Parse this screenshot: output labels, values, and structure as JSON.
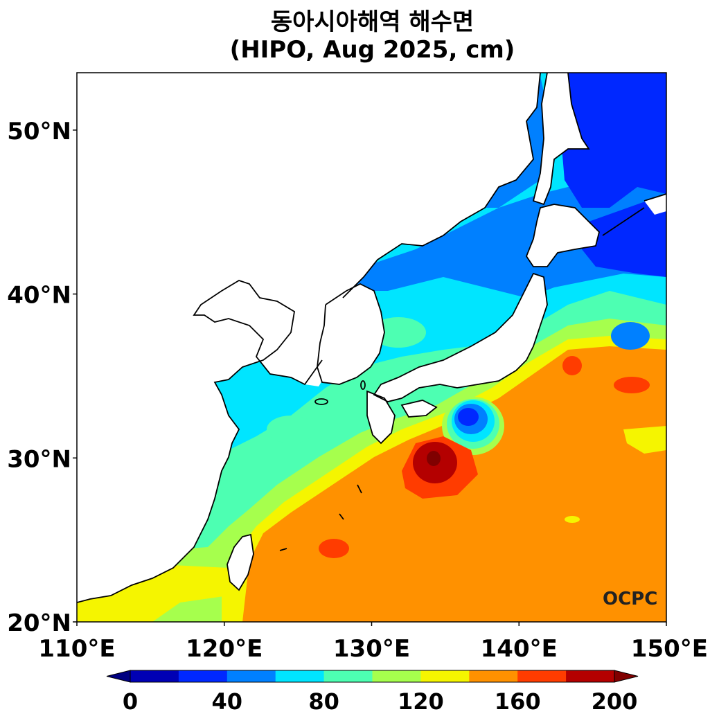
{
  "title": {
    "line1": "동아시아해역 해수면",
    "line2": "(HIPO, Aug 2025, cm)"
  },
  "map": {
    "lon_range": [
      110,
      150
    ],
    "lat_range": [
      20,
      53.5
    ],
    "x_ticks": [
      {
        "lon": 110,
        "label": "110°E"
      },
      {
        "lon": 120,
        "label": "120°E"
      },
      {
        "lon": 130,
        "label": "130°E"
      },
      {
        "lon": 140,
        "label": "140°E"
      },
      {
        "lon": 150,
        "label": "150°E"
      }
    ],
    "y_ticks": [
      {
        "lat": 20,
        "label": "20°N"
      },
      {
        "lat": 30,
        "label": "30°N"
      },
      {
        "lat": 40,
        "label": "40°N"
      },
      {
        "lat": 50,
        "label": "50°N"
      }
    ],
    "logo_text": "OCPC"
  },
  "colorbar": {
    "min": 0,
    "max": 200,
    "step": 20,
    "labels": [
      "0",
      "40",
      "80",
      "120",
      "160",
      "200"
    ],
    "colors": [
      "#0000b4",
      "#0028ff",
      "#0080ff",
      "#00e5ff",
      "#4dffb2",
      "#a6ff4d",
      "#f5f500",
      "#ff9100",
      "#ff3c00",
      "#b40000"
    ],
    "under_color": "#000080",
    "over_color": "#800000"
  }
}
